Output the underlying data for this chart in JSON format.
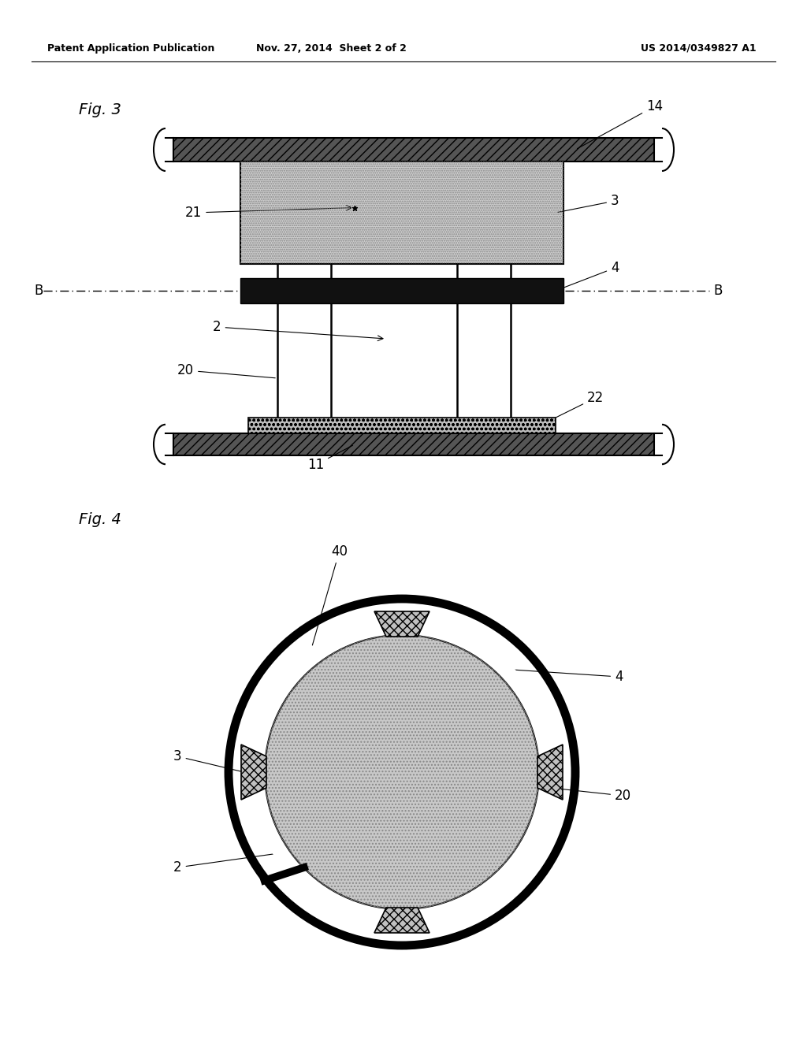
{
  "header_left": "Patent Application Publication",
  "header_mid": "Nov. 27, 2014  Sheet 2 of 2",
  "header_right": "US 2014/0349827 A1",
  "fig3_label": "Fig. 3",
  "fig4_label": "Fig. 4",
  "bg_color": "#ffffff"
}
